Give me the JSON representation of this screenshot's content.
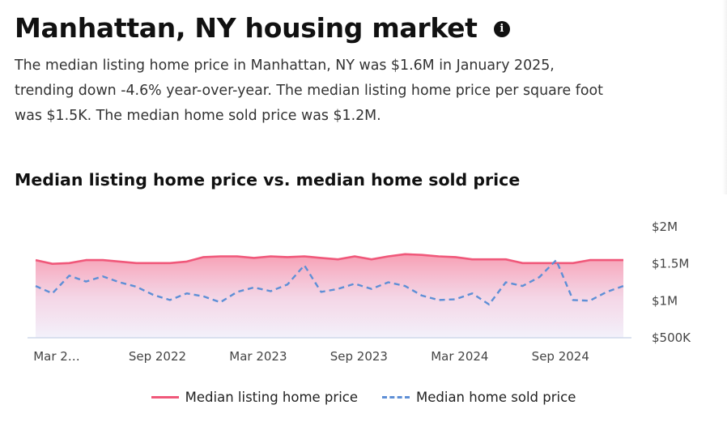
{
  "header": {
    "title": "Manhattan, NY housing market",
    "info_icon": "info-circle-icon",
    "summary_line1": "The median listing home price in Manhattan, NY was $1.6M in January 2025,",
    "summary_line2": "trending down -4.6% year-over-year. The median listing home price per square foot",
    "summary_line3": "was $1.5K. The median home sold price was $1.2M."
  },
  "chart_data": {
    "type": "area",
    "title": "Median listing home price vs. median home sold price",
    "x_tick_labels": [
      "Mar 2…",
      "Sep 2022",
      "Mar 2023",
      "Sep 2023",
      "Mar 2024",
      "Sep 2024"
    ],
    "x_ticks_months_since_start": [
      0,
      6,
      12,
      18,
      24,
      30
    ],
    "y_tick_labels": [
      "$2M",
      "$1.5M",
      "$1M",
      "$500K"
    ],
    "y_ticks": [
      2000000,
      1500000,
      1000000,
      500000
    ],
    "ylim": [
      500000,
      2000000
    ],
    "x_points": 36,
    "grid": false,
    "legend_position": "bottom-center",
    "series": [
      {
        "name": "Median listing home price",
        "style": "solid",
        "fill": "area-gradient",
        "color": "#f0587a",
        "values": [
          1550000,
          1500000,
          1510000,
          1550000,
          1550000,
          1530000,
          1510000,
          1510000,
          1510000,
          1530000,
          1590000,
          1600000,
          1600000,
          1580000,
          1600000,
          1590000,
          1600000,
          1580000,
          1560000,
          1600000,
          1560000,
          1600000,
          1630000,
          1620000,
          1600000,
          1590000,
          1560000,
          1560000,
          1560000,
          1510000,
          1510000,
          1510000,
          1510000,
          1550000,
          1550000,
          1550000
        ]
      },
      {
        "name": "Median home sold price",
        "style": "dashed",
        "color": "#5e8fd6",
        "values": [
          1200000,
          1100000,
          1340000,
          1260000,
          1330000,
          1250000,
          1190000,
          1080000,
          1010000,
          1100000,
          1060000,
          980000,
          1120000,
          1180000,
          1130000,
          1220000,
          1480000,
          1120000,
          1160000,
          1230000,
          1160000,
          1250000,
          1200000,
          1070000,
          1010000,
          1020000,
          1100000,
          950000,
          1250000,
          1200000,
          1320000,
          1550000,
          1010000,
          1000000,
          1120000,
          1200000
        ]
      }
    ]
  },
  "colors": {
    "listing_line": "#f0587a",
    "listing_fill_top": "#f79ab0",
    "fill_bottom": "#f1effa",
    "sold_line": "#5e8fd6",
    "baseline": "#cfd8ea"
  }
}
